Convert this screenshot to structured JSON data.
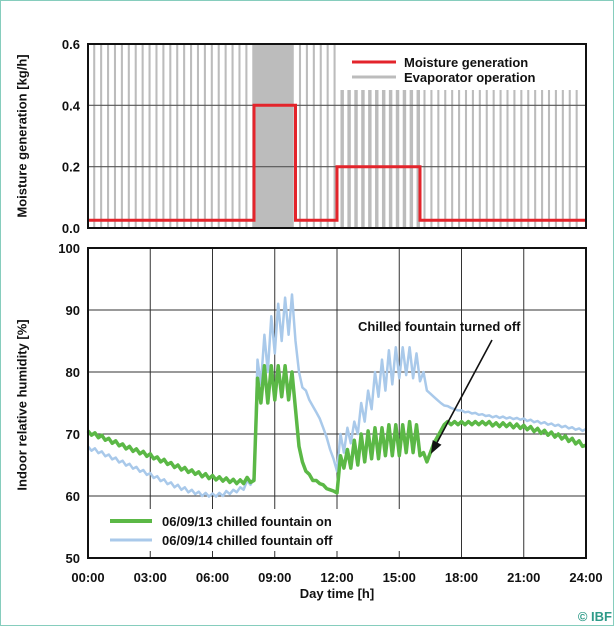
{
  "copyright": "© IBF",
  "chart_data": [
    {
      "type": "line",
      "title": "",
      "xlabel": "",
      "ylabel": "Moisture generation [kg/h]",
      "xlim": [
        "00:00",
        "24:00"
      ],
      "ylim": [
        0,
        0.6
      ],
      "yticks": [
        "0.0",
        "0.2",
        "0.4",
        "0.6"
      ],
      "grid": "horizontal",
      "legend": "top-right",
      "series": [
        {
          "name": "Moisture generation",
          "color": "#e3242b",
          "type": "step",
          "points": [
            [
              "00:00",
              0.025
            ],
            [
              "08:00",
              0.025
            ],
            [
              "08:00",
              0.4
            ],
            [
              "10:00",
              0.4
            ],
            [
              "10:00",
              0.025
            ],
            [
              "12:00",
              0.025
            ],
            [
              "12:00",
              0.2
            ],
            [
              "16:00",
              0.2
            ],
            [
              "16:00",
              0.025
            ],
            [
              "24:00",
              0.025
            ]
          ]
        },
        {
          "name": "Evaporator operation",
          "color": "#bcbcbc",
          "type": "bars",
          "segments": [
            {
              "from": "00:15",
              "to": "07:55",
              "cycle_min": 20,
              "on_fraction": 0.3,
              "top": 0.6
            },
            {
              "from": "07:55",
              "to": "09:55",
              "cycle_min": 20,
              "on_fraction": 1,
              "top": 0.6
            },
            {
              "from": "10:10",
              "to": "11:55",
              "cycle_min": 20,
              "on_fraction": 0.3,
              "top": 0.6
            },
            {
              "from": "12:10",
              "to": "16:00",
              "cycle_min": 20,
              "on_fraction": 0.5,
              "top": 0.45
            },
            {
              "from": "16:10",
              "to": "23:50",
              "cycle_min": 20,
              "on_fraction": 0.3,
              "top": 0.45
            }
          ]
        }
      ]
    },
    {
      "type": "line",
      "title": "",
      "xlabel": "Day time [h]",
      "ylabel": "Indoor relative humidity [%]",
      "xlim": [
        "00:00",
        "24:00"
      ],
      "ylim": [
        50,
        100
      ],
      "xticks": [
        "00:00",
        "03:00",
        "06:00",
        "09:00",
        "12:00",
        "15:00",
        "18:00",
        "21:00",
        "24:00"
      ],
      "yticks": [
        "50",
        "60",
        "70",
        "80",
        "90",
        "100"
      ],
      "grid": true,
      "legend": "bottom-left",
      "x": [
        "00:00",
        "00:10",
        "00:20",
        "00:30",
        "00:40",
        "00:50",
        "01:00",
        "01:10",
        "01:20",
        "01:30",
        "01:40",
        "01:50",
        "02:00",
        "02:10",
        "02:20",
        "02:30",
        "02:40",
        "02:50",
        "03:00",
        "03:10",
        "03:20",
        "03:30",
        "03:40",
        "03:50",
        "04:00",
        "04:10",
        "04:20",
        "04:30",
        "04:40",
        "04:50",
        "05:00",
        "05:10",
        "05:20",
        "05:30",
        "05:40",
        "05:50",
        "06:00",
        "06:10",
        "06:20",
        "06:30",
        "06:40",
        "06:50",
        "07:00",
        "07:10",
        "07:20",
        "07:30",
        "07:40",
        "07:50",
        "08:00",
        "08:10",
        "08:20",
        "08:30",
        "08:40",
        "08:50",
        "09:00",
        "09:10",
        "09:20",
        "09:30",
        "09:40",
        "09:50",
        "10:00",
        "10:10",
        "10:20",
        "10:30",
        "10:40",
        "10:50",
        "11:00",
        "11:10",
        "11:20",
        "11:30",
        "11:40",
        "11:50",
        "12:00",
        "12:10",
        "12:20",
        "12:30",
        "12:40",
        "12:50",
        "13:00",
        "13:10",
        "13:20",
        "13:30",
        "13:40",
        "13:50",
        "14:00",
        "14:10",
        "14:20",
        "14:30",
        "14:40",
        "14:50",
        "15:00",
        "15:10",
        "15:20",
        "15:30",
        "15:40",
        "15:50",
        "16:00",
        "16:10",
        "16:20",
        "16:30",
        "16:40",
        "16:50",
        "17:00",
        "17:10",
        "17:20",
        "17:30",
        "17:40",
        "17:50",
        "18:00",
        "18:10",
        "18:20",
        "18:30",
        "18:40",
        "18:50",
        "19:00",
        "19:10",
        "19:20",
        "19:30",
        "19:40",
        "19:50",
        "20:00",
        "20:10",
        "20:20",
        "20:30",
        "20:40",
        "20:50",
        "21:00",
        "21:10",
        "21:20",
        "21:30",
        "21:40",
        "21:50",
        "22:00",
        "22:10",
        "22:20",
        "22:30",
        "22:40",
        "22:50",
        "23:00",
        "23:10",
        "23:20",
        "23:30",
        "23:40",
        "23:50",
        "24:00"
      ],
      "series": [
        {
          "name": "06/09/13 chilled fountain on",
          "color": "#5bb846",
          "values": [
            70.5,
            69.8,
            70.2,
            69.4,
            69.8,
            69.0,
            69.3,
            68.5,
            68.9,
            68.1,
            68.4,
            67.6,
            68.0,
            67.2,
            67.6,
            66.8,
            67.2,
            66.4,
            66.8,
            66.0,
            66.3,
            65.5,
            65.9,
            65.1,
            65.4,
            64.6,
            65.0,
            64.2,
            64.6,
            63.8,
            64.2,
            63.5,
            63.9,
            63.1,
            63.6,
            62.8,
            63.3,
            62.6,
            63.1,
            62.4,
            62.9,
            62.2,
            62.7,
            62.0,
            62.6,
            62.0,
            63.0,
            62.2,
            62.5,
            79.0,
            75.0,
            81.0,
            75.0,
            81.0,
            75.5,
            81.0,
            76.0,
            81.0,
            75.5,
            80.0,
            74.0,
            68.0,
            65.5,
            64.0,
            63.5,
            62.5,
            62.5,
            62.0,
            61.8,
            61.2,
            61.0,
            60.8,
            60.5,
            66.5,
            64.5,
            67.5,
            64.5,
            69.0,
            65.0,
            70.0,
            65.5,
            70.5,
            66.0,
            71.0,
            66.0,
            71.0,
            66.5,
            71.5,
            66.5,
            71.5,
            66.5,
            71.5,
            67.0,
            72.0,
            67.0,
            71.5,
            66.5,
            67.0,
            65.5,
            67.0,
            68.5,
            69.5,
            70.5,
            71.5,
            72.0,
            71.5,
            72.0,
            71.5,
            72.0,
            71.5,
            72.0,
            71.5,
            72.0,
            71.5,
            72.0,
            71.5,
            72.0,
            71.3,
            71.8,
            71.2,
            71.8,
            71.2,
            71.7,
            71.0,
            71.6,
            70.9,
            71.4,
            70.7,
            71.2,
            70.4,
            70.9,
            70.1,
            70.6,
            69.8,
            70.3,
            69.5,
            70.0,
            69.2,
            69.7,
            68.8,
            69.3,
            68.4,
            68.9,
            68.0,
            68.2
          ]
        },
        {
          "name": "06/09/14 chilled fountain off",
          "color": "#a9c9ea",
          "values": [
            68.0,
            67.3,
            67.7,
            66.9,
            67.2,
            66.4,
            66.7,
            65.9,
            66.2,
            65.4,
            65.7,
            64.9,
            65.2,
            64.4,
            64.7,
            63.9,
            64.2,
            63.4,
            63.7,
            62.9,
            63.2,
            62.4,
            62.7,
            61.9,
            62.2,
            61.4,
            61.8,
            61.0,
            61.4,
            60.6,
            61.0,
            60.3,
            60.7,
            60.0,
            60.5,
            59.9,
            60.4,
            59.9,
            60.5,
            60.0,
            60.8,
            60.3,
            61.0,
            60.6,
            61.4,
            61.0,
            62.5,
            61.8,
            63.0,
            82.0,
            78.0,
            86.0,
            80.0,
            89.0,
            83.0,
            91.0,
            85.0,
            92.0,
            86.0,
            92.5,
            85.0,
            80.0,
            77.5,
            77.0,
            75.5,
            74.5,
            73.5,
            72.5,
            71.0,
            69.5,
            67.5,
            66.0,
            64.0,
            70.0,
            67.0,
            71.0,
            68.5,
            72.0,
            70.0,
            75.0,
            72.0,
            77.0,
            74.0,
            80.0,
            76.0,
            82.0,
            77.0,
            83.5,
            78.0,
            84.0,
            79.0,
            84.0,
            79.5,
            84.0,
            79.0,
            83.0,
            78.5,
            80.0,
            77.0,
            76.5,
            76.0,
            75.5,
            75.0,
            74.6,
            74.5,
            74.2,
            74.0,
            73.8,
            73.8,
            73.5,
            73.6,
            73.3,
            73.4,
            73.1,
            73.2,
            72.9,
            73.0,
            72.7,
            72.9,
            72.6,
            72.8,
            72.5,
            72.7,
            72.4,
            72.6,
            72.3,
            72.5,
            72.1,
            72.3,
            71.9,
            72.1,
            71.7,
            71.9,
            71.5,
            71.7,
            71.3,
            71.5,
            71.1,
            71.3,
            70.9,
            71.1,
            70.7,
            70.9,
            70.5,
            70.8
          ]
        }
      ],
      "annotations": [
        {
          "text": "Chilled fountain turned off",
          "x": "16:20",
          "y": 65.5
        }
      ]
    }
  ]
}
